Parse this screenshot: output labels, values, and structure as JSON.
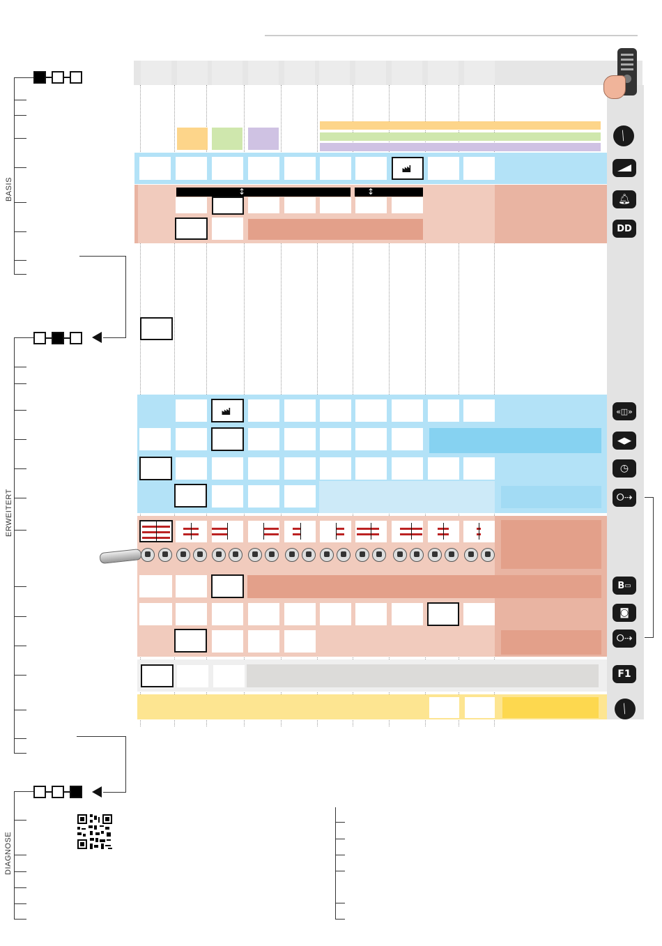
{
  "sections": {
    "basis": "BASIS",
    "erweitert": "ERWEITERT",
    "diagnose": "DIAGNOSE"
  },
  "sidebar_icons": {
    "1": "tool-icon",
    "2": "volume-ramp-icon",
    "3": "bell-icon",
    "4": "DD",
    "5": "swing-icon",
    "6": "arrows-icon",
    "7": "clock-icon",
    "8": "usb-icon",
    "9": "B",
    "10": "camera-icon",
    "11": "usb-icon",
    "12": "F1",
    "13": "tool-icon"
  },
  "colors": {
    "blue": "#b3e2f7",
    "blue_dark": "#86d2f1",
    "salmon": "#e9b4a2",
    "salmon_dark": "#e3a08a",
    "orange": "#fdd58a",
    "green": "#cfe7ad",
    "purple": "#cfc2e3",
    "yellow": "#fde591",
    "grey": "#dcdbd9"
  }
}
